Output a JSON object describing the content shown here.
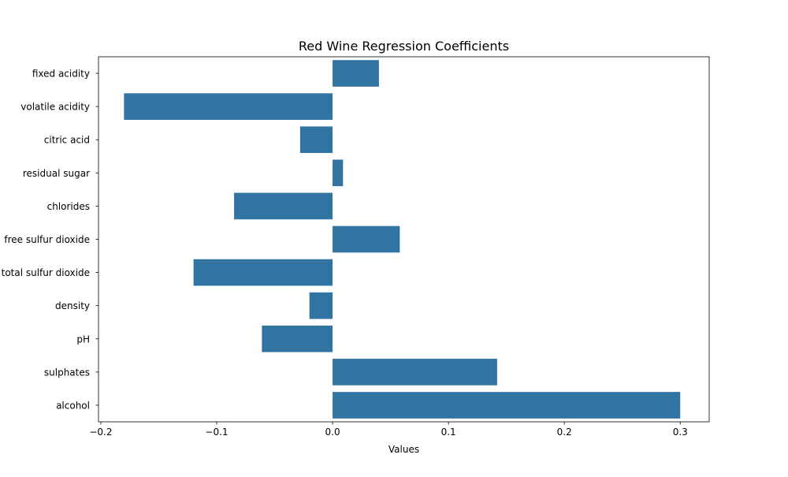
{
  "chart_data": {
    "type": "bar",
    "orientation": "horizontal",
    "title": "Red Wine Regression Coefficients",
    "xlabel": "Values",
    "ylabel": "",
    "categories": [
      "fixed acidity",
      "volatile acidity",
      "citric acid",
      "residual sugar",
      "chlorides",
      "free sulfur dioxide",
      "total sulfur dioxide",
      "density",
      "pH",
      "sulphates",
      "alcohol"
    ],
    "values": [
      0.04,
      -0.18,
      -0.028,
      0.009,
      -0.085,
      0.058,
      -0.12,
      -0.02,
      -0.061,
      0.142,
      0.3
    ],
    "xlim": [
      -0.202,
      0.325
    ],
    "xticks": [
      -0.2,
      -0.1,
      0.0,
      0.1,
      0.2,
      0.3
    ],
    "xtick_labels": [
      "−0.2",
      "−0.1",
      "0.0",
      "0.1",
      "0.2",
      "0.3"
    ],
    "grid": false,
    "legend": "none",
    "bar_color": "#3274a1"
  }
}
